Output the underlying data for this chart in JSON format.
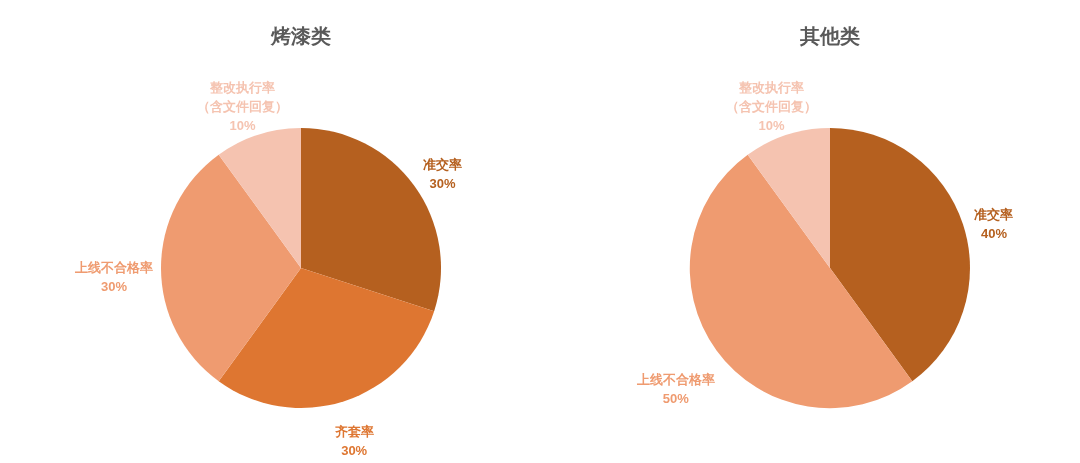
{
  "chart_data": [
    {
      "type": "pie",
      "title": "烤漆类",
      "categories": [
        "准交率",
        "齐套率",
        "上线不合格率",
        "整改执行率（含文件回复）"
      ],
      "values": [
        30,
        30,
        30,
        10
      ],
      "colors": [
        "#b5601f",
        "#de7631",
        "#ef9b70",
        "#f5c3b0"
      ],
      "value_labels": [
        "30%",
        "30%",
        "30%",
        "10%"
      ]
    },
    {
      "type": "pie",
      "title": "其他类",
      "categories": [
        "准交率",
        "上线不合格率",
        "整改执行率（含文件回复）"
      ],
      "values": [
        40,
        50,
        10
      ],
      "colors": [
        "#b5601f",
        "#ef9b70",
        "#f5c3b0"
      ],
      "value_labels": [
        "40%",
        "50%",
        "10%"
      ]
    }
  ]
}
